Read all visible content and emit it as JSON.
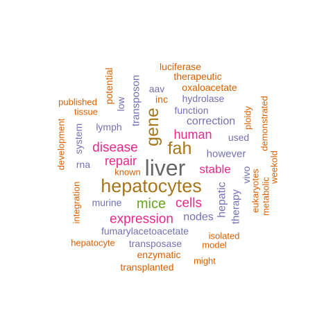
{
  "word_cloud": {
    "palette": {
      "orange": "#d95f02",
      "purple": "#7570b3",
      "magenta": "#e7298a",
      "green": "#66a61e",
      "olive": "#a6761d",
      "gray": "#666666"
    },
    "words": [
      {
        "text": "liver",
        "color": "#666666",
        "rotated": false
      },
      {
        "text": "hepatocytes",
        "color": "#a6761d",
        "rotated": false
      },
      {
        "text": "gene",
        "color": "#a6761d",
        "rotated": true
      },
      {
        "text": "fah",
        "color": "#a6761d",
        "rotated": false
      },
      {
        "text": "mice",
        "color": "#66a61e",
        "rotated": false
      },
      {
        "text": "expression",
        "color": "#e7298a",
        "rotated": false
      },
      {
        "text": "disease",
        "color": "#e7298a",
        "rotated": false
      },
      {
        "text": "cells",
        "color": "#e7298a",
        "rotated": false
      },
      {
        "text": "human",
        "color": "#e7298a",
        "rotated": false
      },
      {
        "text": "repair",
        "color": "#e7298a",
        "rotated": false
      },
      {
        "text": "stable",
        "color": "#e7298a",
        "rotated": false
      },
      {
        "text": "correction",
        "color": "#7570b3",
        "rotated": false
      },
      {
        "text": "hepatic",
        "color": "#7570b3",
        "rotated": true
      },
      {
        "text": "nodes",
        "color": "#7570b3",
        "rotated": false
      },
      {
        "text": "transposon",
        "color": "#7570b3",
        "rotated": true
      },
      {
        "text": "however",
        "color": "#7570b3",
        "rotated": false
      },
      {
        "text": "therapy",
        "color": "#7570b3",
        "rotated": true
      },
      {
        "text": "function",
        "color": "#7570b3",
        "rotated": false
      },
      {
        "text": "hydrolase",
        "color": "#7570b3",
        "rotated": false
      },
      {
        "text": "lymph",
        "color": "#7570b3",
        "rotated": false
      },
      {
        "text": "murine",
        "color": "#7570b3",
        "rotated": false
      },
      {
        "text": "rna",
        "color": "#7570b3",
        "rotated": false
      },
      {
        "text": "used",
        "color": "#7570b3",
        "rotated": false
      },
      {
        "text": "vivo",
        "color": "#7570b3",
        "rotated": true
      },
      {
        "text": "aav",
        "color": "#7570b3",
        "rotated": false
      },
      {
        "text": "fumarylacetoacetate",
        "color": "#7570b3",
        "rotated": false
      },
      {
        "text": "transposase",
        "color": "#7570b3",
        "rotated": false
      },
      {
        "text": "low",
        "color": "#7570b3",
        "rotated": true
      },
      {
        "text": "system",
        "color": "#7570b3",
        "rotated": true
      },
      {
        "text": "luciferase",
        "color": "#d95f02",
        "rotated": false
      },
      {
        "text": "therapeutic",
        "color": "#d95f02",
        "rotated": false
      },
      {
        "text": "oxaloacetate",
        "color": "#d95f02",
        "rotated": false
      },
      {
        "text": "inc",
        "color": "#d95f02",
        "rotated": false
      },
      {
        "text": "potential",
        "color": "#d95f02",
        "rotated": true
      },
      {
        "text": "published",
        "color": "#d95f02",
        "rotated": false
      },
      {
        "text": "tissue",
        "color": "#d95f02",
        "rotated": false
      },
      {
        "text": "development",
        "color": "#d95f02",
        "rotated": true
      },
      {
        "text": "integration",
        "color": "#d95f02",
        "rotated": true
      },
      {
        "text": "known",
        "color": "#d95f02",
        "rotated": false
      },
      {
        "text": "ploidy",
        "color": "#d95f02",
        "rotated": true
      },
      {
        "text": "demonstrated",
        "color": "#d95f02",
        "rotated": true
      },
      {
        "text": "weekold",
        "color": "#d95f02",
        "rotated": true
      },
      {
        "text": "eukaryotes",
        "color": "#d95f02",
        "rotated": true
      },
      {
        "text": "metabolic",
        "color": "#d95f02",
        "rotated": true
      },
      {
        "text": "isolated",
        "color": "#d95f02",
        "rotated": false
      },
      {
        "text": "model",
        "color": "#d95f02",
        "rotated": false
      },
      {
        "text": "hepatocyte",
        "color": "#d95f02",
        "rotated": false
      },
      {
        "text": "enzymatic",
        "color": "#d95f02",
        "rotated": false
      },
      {
        "text": "might",
        "color": "#d95f02",
        "rotated": false
      },
      {
        "text": "transplanted",
        "color": "#d95f02",
        "rotated": false
      }
    ]
  }
}
